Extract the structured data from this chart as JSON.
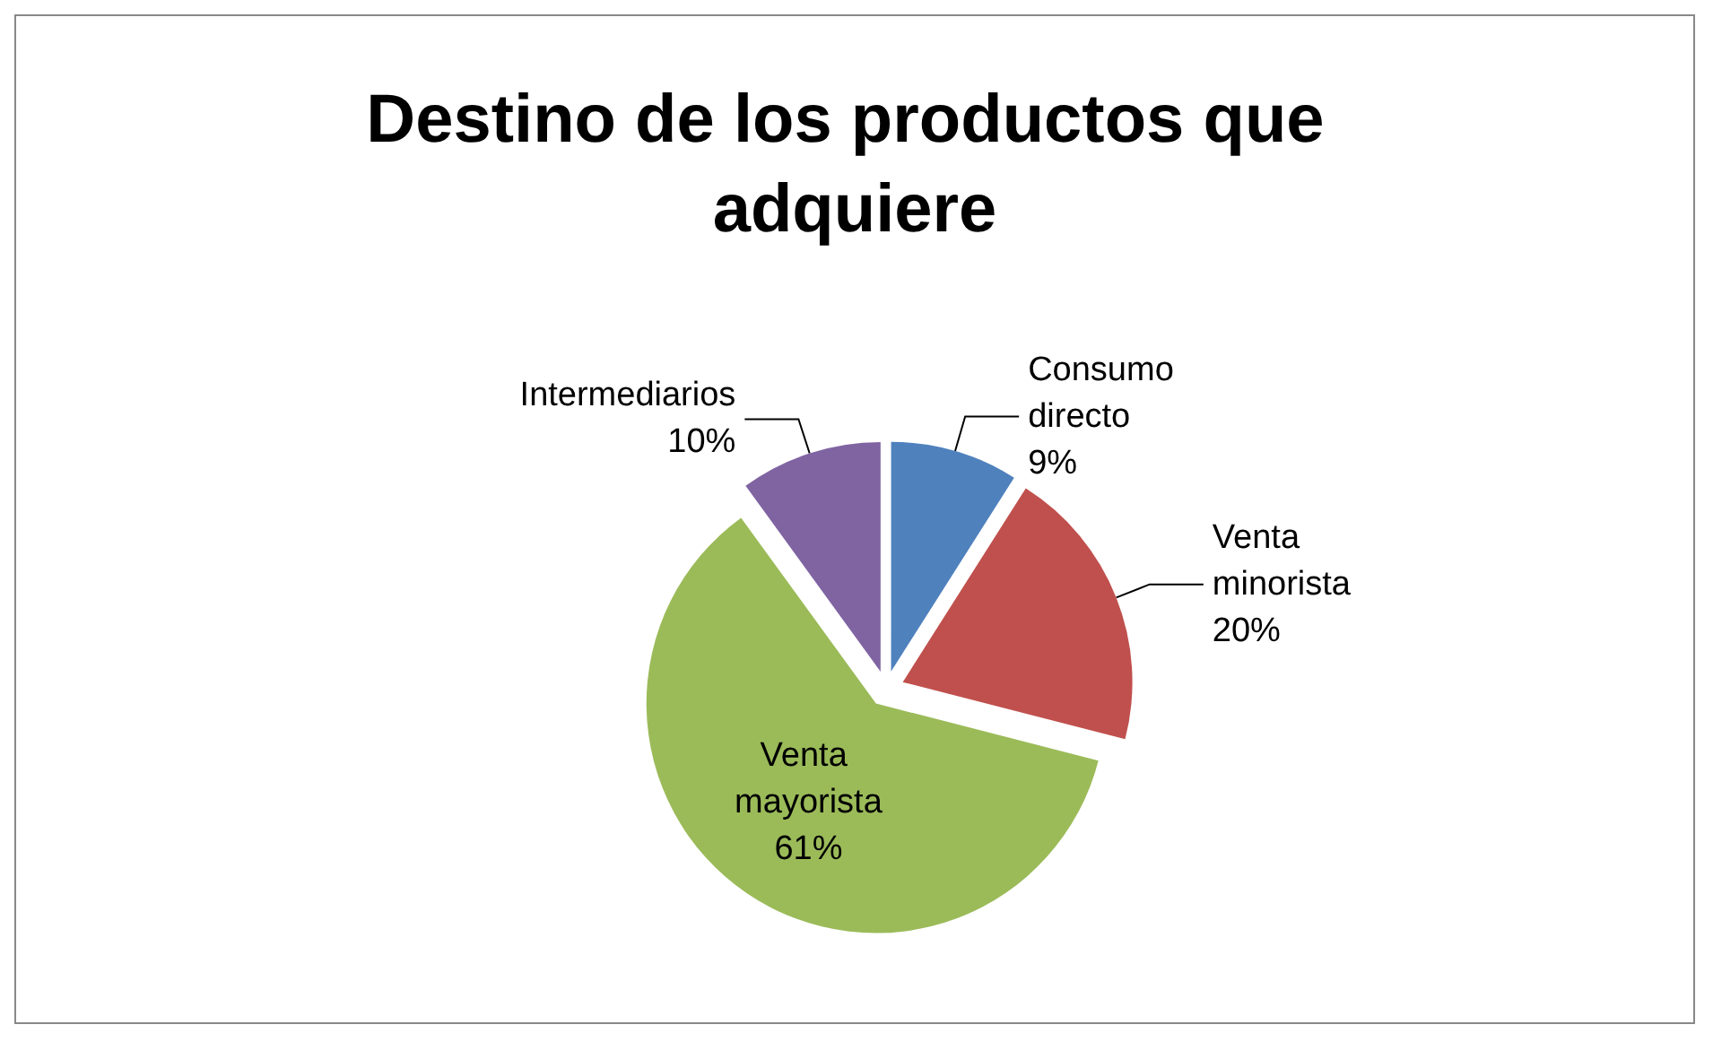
{
  "chart_data": {
    "type": "pie",
    "title": "Destino de los productos que adquiere",
    "categories": [
      "Consumo directo",
      "Venta minorista",
      "Venta mayorista",
      "Intermediarios"
    ],
    "values": [
      9,
      20,
      61,
      10
    ],
    "colors": [
      "#4f81bd",
      "#c0504d",
      "#9bbb59",
      "#8064a2"
    ],
    "value_labels": [
      "9%",
      "20%",
      "61%",
      "10%"
    ],
    "legend": false
  }
}
